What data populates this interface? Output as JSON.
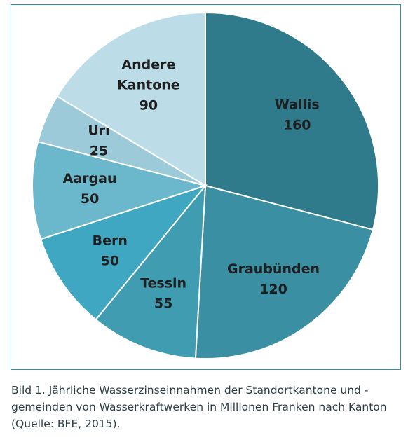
{
  "chart_data": {
    "type": "pie",
    "slices": [
      {
        "label": [
          "Wallis"
        ],
        "value": 160,
        "color": "#2f7a8b"
      },
      {
        "label": [
          "Graubünden"
        ],
        "value": 120,
        "color": "#3b8fa3"
      },
      {
        "label": [
          "Tessin"
        ],
        "value": 55,
        "color": "#3f9cb1"
      },
      {
        "label": [
          "Bern"
        ],
        "value": 50,
        "color": "#3fa7c1"
      },
      {
        "label": [
          "Aargau"
        ],
        "value": 50,
        "color": "#6bb8cc"
      },
      {
        "label": [
          "Uri"
        ],
        "value": 25,
        "color": "#9ccad9"
      },
      {
        "label": [
          "Andere",
          "Kantone"
        ],
        "value": 90,
        "color": "#bcdde8"
      }
    ]
  },
  "caption": "Bild 1. Jährliche Wasserzinseinnahmen der Standortkantone und -gemeinden von Wasserkraftwerken in Millionen Franken nach Kanton (Quelle: BFE, 2015)."
}
